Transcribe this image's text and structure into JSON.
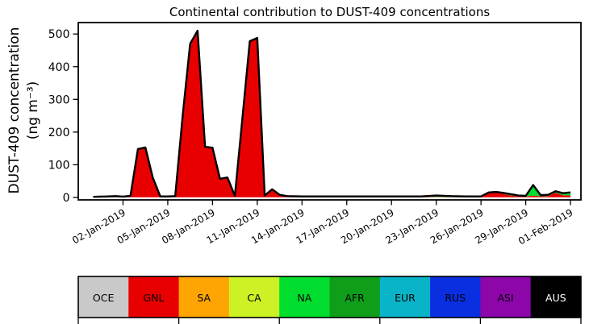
{
  "title": "Continental contribution to DUST-409 concentrations",
  "y_axis": {
    "label_line1": "DUST-409 concentration",
    "label_line2": "(ng m⁻³)",
    "ticks": [
      0,
      100,
      200,
      300,
      400,
      500
    ]
  },
  "chart_data": {
    "type": "area",
    "stacked": true,
    "title": "Continental contribution to DUST-409 concentrations",
    "ylabel": "DUST-409 concentration (ng m⁻³)",
    "legend_position": "bottom",
    "grid": false,
    "outline_color": "#000000",
    "ylim": [
      -7.5,
      535
    ],
    "xlim_days": [
      -1,
      32.7
    ],
    "y_ticks": [
      0,
      100,
      200,
      300,
      400,
      500
    ],
    "x_ticks": [
      {
        "day": 2,
        "label": "02-Jan-2019"
      },
      {
        "day": 5,
        "label": "05-Jan-2019"
      },
      {
        "day": 8,
        "label": "08-Jan-2019"
      },
      {
        "day": 11,
        "label": "11-Jan-2019"
      },
      {
        "day": 14,
        "label": "14-Jan-2019"
      },
      {
        "day": 17,
        "label": "17-Jan-2019"
      },
      {
        "day": 20,
        "label": "20-Jan-2019"
      },
      {
        "day": 23,
        "label": "23-Jan-2019"
      },
      {
        "day": 26,
        "label": "26-Jan-2019"
      },
      {
        "day": 29,
        "label": "29-Jan-2019"
      },
      {
        "day": 32,
        "label": "01-Feb-2019"
      }
    ],
    "x_day0": "31-Dec-2018",
    "x_days": [
      0,
      1,
      1.5,
      2,
      2.5,
      3,
      3.5,
      4,
      4.5,
      5,
      5.5,
      6,
      6.5,
      7,
      7.5,
      8,
      8.5,
      9,
      9.5,
      10,
      10.5,
      11,
      11.5,
      12,
      12.5,
      13,
      14,
      16,
      18,
      20,
      22,
      23,
      24,
      25,
      26,
      26.5,
      27,
      27.5,
      28,
      28.5,
      29,
      29.5,
      30,
      30.5,
      31,
      31.5,
      32
    ],
    "series": [
      {
        "name": "OCE",
        "color": "#c9c9c9",
        "label_color": "#000000",
        "values": [
          0.5,
          0.5,
          0.5,
          0.5,
          0.5,
          0.5,
          0.5,
          0.5,
          0.5,
          0.5,
          0.5,
          0.5,
          0.5,
          0.5,
          0.5,
          0.5,
          0.5,
          0.5,
          0.5,
          0.5,
          0.5,
          0.5,
          0.5,
          0.5,
          0.5,
          0.5,
          0.5,
          0.5,
          0.5,
          0.5,
          0.5,
          0.5,
          0.5,
          0.5,
          0.5,
          0.5,
          0.5,
          0.5,
          0.5,
          0.5,
          0.5,
          0.5,
          0.5,
          0.5,
          0.5,
          0.5,
          0.5
        ]
      },
      {
        "name": "GNL",
        "color": "#e80000",
        "label_color": "#000000",
        "values": [
          0.5,
          1.5,
          2.5,
          1,
          3.5,
          147,
          152,
          59,
          2,
          2,
          3,
          249,
          469,
          509,
          154,
          151,
          56,
          60,
          4,
          239,
          477,
          487,
          5,
          24,
          7,
          2.3,
          1.3,
          1.3,
          1.3,
          1.3,
          0.8,
          1.3,
          0.3,
          0.8,
          1.7,
          13.2,
          14.7,
          10.2,
          5.7,
          2.7,
          2.2,
          5.2,
          3.2,
          3.7,
          14.2,
          6.2,
          5.7
        ]
      },
      {
        "name": "SA",
        "color": "#ffa502",
        "label_color": "#000000",
        "values": [
          0,
          0,
          0,
          0,
          0,
          0,
          0,
          0,
          0,
          0,
          0,
          0,
          0,
          0,
          0,
          0,
          0,
          0,
          0,
          0,
          0,
          0,
          0,
          0,
          0,
          0,
          0,
          0,
          0,
          0,
          0,
          0,
          0,
          0,
          0,
          0,
          0,
          0,
          0,
          0,
          0,
          0,
          0,
          0,
          0,
          0,
          0
        ]
      },
      {
        "name": "CA",
        "color": "#ccf226",
        "label_color": "#000000",
        "values": [
          0,
          0,
          0,
          0,
          0,
          0,
          0,
          0,
          0,
          0,
          0,
          0,
          0,
          0,
          0,
          0,
          0,
          0,
          0,
          0,
          0,
          0,
          0,
          0,
          0,
          0,
          0,
          0,
          0,
          0,
          0,
          0,
          0,
          0,
          0,
          0,
          0,
          0,
          0,
          0,
          0,
          0,
          0,
          0,
          0,
          0,
          0
        ]
      },
      {
        "name": "NA",
        "color": "#00dd2e",
        "label_color": "#000000",
        "values": [
          0,
          0,
          0,
          0,
          0,
          0,
          0,
          0,
          0,
          0,
          0,
          0,
          0,
          0,
          0,
          0,
          0,
          0,
          0,
          0,
          0,
          0,
          0,
          0,
          0,
          0,
          0,
          0,
          0,
          0,
          0.5,
          3,
          2,
          0.5,
          0.5,
          1,
          1.5,
          3,
          3.5,
          2.5,
          2,
          28,
          3,
          3.5,
          4,
          5,
          7
        ]
      },
      {
        "name": "AFR",
        "color": "#0f9e1a",
        "label_color": "#000000",
        "values": [
          0,
          0,
          0,
          0,
          0,
          0,
          0,
          0,
          0,
          0,
          0,
          0,
          0,
          0,
          0,
          0,
          0,
          0,
          0,
          0,
          0,
          0,
          0,
          0,
          0,
          0,
          0,
          0,
          0,
          0,
          0,
          0,
          0,
          0,
          0,
          0,
          0,
          0,
          0,
          0,
          0,
          4,
          0,
          0,
          0,
          1,
          2
        ]
      },
      {
        "name": "EUR",
        "color": "#0ab4c8",
        "label_color": "#000000",
        "values": [
          1,
          1,
          1,
          1,
          1,
          0.5,
          0.5,
          0.5,
          0.5,
          0.5,
          0.5,
          0.5,
          0.5,
          0.5,
          0.5,
          0.5,
          0.5,
          0.5,
          0.5,
          0.5,
          0.5,
          0.5,
          0.5,
          0.5,
          0.5,
          1.2,
          1.2,
          1.2,
          1.2,
          1.2,
          1.2,
          1.2,
          1.2,
          1.2,
          0.3,
          0.3,
          0.3,
          0.3,
          0.3,
          0.3,
          0.3,
          0.3,
          0.3,
          0.3,
          0.3,
          0.3,
          0.3
        ]
      },
      {
        "name": "RUS",
        "color": "#0a2fe0",
        "label_color": "#000000",
        "values": [
          0,
          0,
          0,
          0,
          0,
          0,
          0,
          0,
          0,
          0,
          0,
          0,
          0,
          0,
          0,
          0,
          0,
          0,
          0,
          0,
          0,
          0,
          0,
          0,
          0,
          0,
          0,
          0,
          0,
          0,
          0,
          0,
          0,
          0,
          0,
          0,
          0,
          0,
          0,
          0,
          0,
          0,
          0,
          0,
          0,
          0,
          0
        ]
      },
      {
        "name": "ASI",
        "color": "#8c06aa",
        "label_color": "#000000",
        "values": [
          0,
          0,
          0,
          0,
          0,
          0,
          0,
          0,
          0,
          0,
          0,
          0,
          0,
          0,
          0,
          0,
          0,
          0,
          0,
          0,
          0,
          0,
          0,
          0,
          0,
          0,
          0,
          0,
          0,
          0,
          0,
          0,
          0,
          0,
          0,
          0,
          0,
          0,
          0,
          0,
          0,
          0,
          0,
          0,
          0,
          0,
          0
        ]
      },
      {
        "name": "AUS",
        "color": "#000000",
        "label_color": "#ffffff",
        "values": [
          0,
          0,
          0,
          0,
          0,
          0,
          0,
          0,
          0,
          0,
          0,
          0,
          0,
          0,
          0,
          0,
          0,
          0,
          0,
          0,
          0,
          0,
          0,
          0,
          0,
          0,
          0,
          0,
          0,
          0,
          0,
          0,
          0,
          0,
          0,
          0,
          0,
          0,
          0,
          0,
          0,
          0,
          0,
          0,
          0,
          0,
          0
        ]
      }
    ]
  }
}
